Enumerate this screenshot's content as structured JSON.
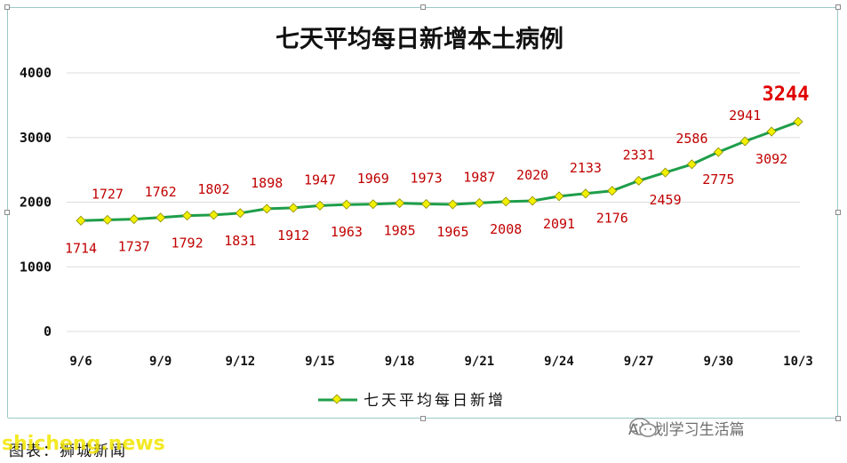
{
  "chart_data": {
    "type": "line",
    "title": "七天平均每日新增本土病例",
    "xlabel": "",
    "ylabel": "",
    "ylim": [
      0,
      4000
    ],
    "yticks": [
      0,
      1000,
      2000,
      3000,
      4000
    ],
    "x": [
      "9/6",
      "9/7",
      "9/8",
      "9/9",
      "9/10",
      "9/11",
      "9/12",
      "9/13",
      "9/14",
      "9/15",
      "9/16",
      "9/17",
      "9/18",
      "9/19",
      "9/20",
      "9/21",
      "9/22",
      "9/23",
      "9/24",
      "9/25",
      "9/26",
      "9/27",
      "9/28",
      "9/29",
      "9/30",
      "10/1",
      "10/2",
      "10/3"
    ],
    "xtick_labels": [
      "9/6",
      "9/9",
      "9/12",
      "9/15",
      "9/18",
      "9/21",
      "9/24",
      "9/27",
      "9/30",
      "10/3"
    ],
    "series": [
      {
        "name": "七天平均每日新增",
        "color": "#1e9e4a",
        "marker_color": "#f0f000",
        "values": [
          1714,
          1727,
          1737,
          1762,
          1792,
          1802,
          1831,
          1898,
          1912,
          1947,
          1963,
          1969,
          1985,
          1973,
          1965,
          1987,
          2008,
          2020,
          2091,
          2133,
          2176,
          2331,
          2459,
          2586,
          2775,
          2941,
          3092,
          3244
        ]
      }
    ],
    "grid": "horizontal",
    "legend": "bottom-center",
    "data_label_color": "#c00000"
  },
  "watermark": {
    "wechat_account": "A计划学习生活篇",
    "source_text": "图表：狮城新闻",
    "site": "shicheng.news"
  }
}
